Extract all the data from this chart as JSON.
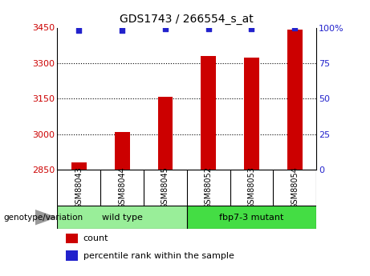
{
  "title": "GDS1743 / 266554_s_at",
  "samples": [
    "GSM88043",
    "GSM88044",
    "GSM88045",
    "GSM88052",
    "GSM88053",
    "GSM88054"
  ],
  "count_values": [
    2880,
    3010,
    3158,
    3330,
    3325,
    3440
  ],
  "percentile_values": [
    98,
    98,
    99,
    99,
    99,
    100
  ],
  "ylim_left": [
    2850,
    3450
  ],
  "ylim_right": [
    0,
    100
  ],
  "yticks_left": [
    2850,
    3000,
    3150,
    3300,
    3450
  ],
  "yticks_right": [
    0,
    25,
    50,
    75,
    100
  ],
  "ytick_labels_right": [
    "0",
    "25",
    "50",
    "75",
    "100%"
  ],
  "bar_color": "#cc0000",
  "dot_color": "#2222cc",
  "groups": [
    {
      "label": "wild type",
      "indices": [
        0,
        1,
        2
      ],
      "color": "#99ee99"
    },
    {
      "label": "fbp7-3 mutant",
      "indices": [
        3,
        4,
        5
      ],
      "color": "#44dd44"
    }
  ],
  "group_row_label": "genotype/variation",
  "legend_count_label": "count",
  "legend_percentile_label": "percentile rank within the sample",
  "bar_width": 0.35,
  "background_color": "#ffffff",
  "tick_label_color_left": "#cc0000",
  "tick_label_color_right": "#2222cc",
  "title_color": "#000000",
  "sample_box_color": "#cccccc",
  "arrow_color": "#999999"
}
